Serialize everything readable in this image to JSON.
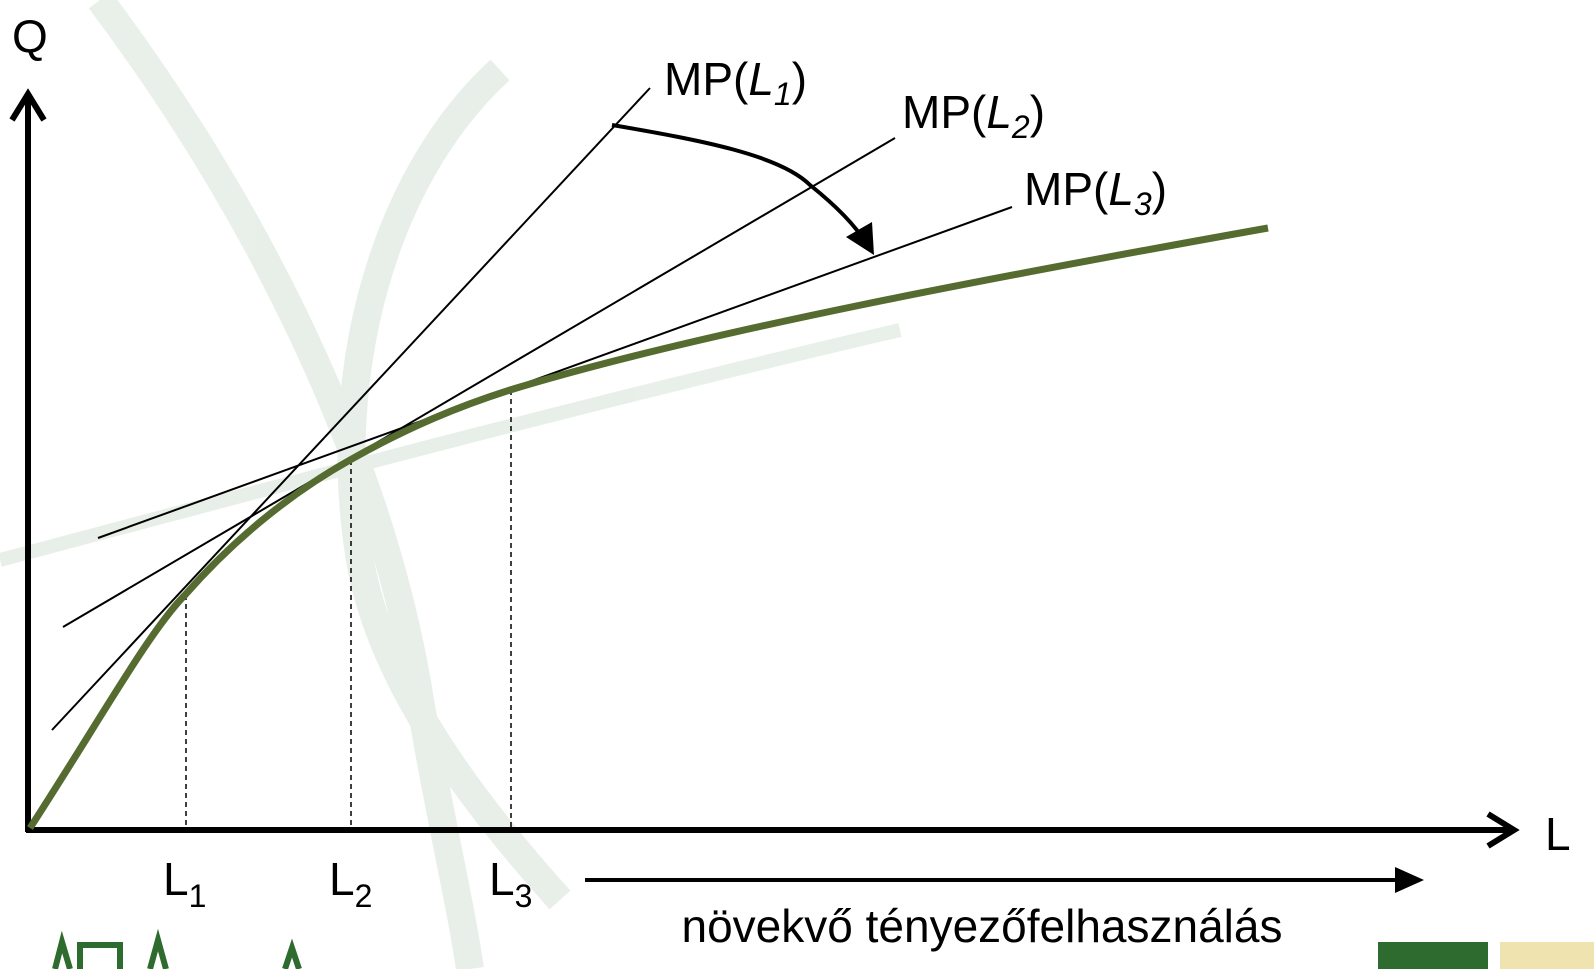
{
  "axes": {
    "y_label": "Q",
    "x_label": "L"
  },
  "x_markers": [
    {
      "main": "L",
      "sub": "1"
    },
    {
      "main": "L",
      "sub": "2"
    },
    {
      "main": "L",
      "sub": "3"
    }
  ],
  "tangents": [
    {
      "prefix": "MP(",
      "var": "L",
      "sub": "1",
      "suffix": ")"
    },
    {
      "prefix": "MP(",
      "var": "L",
      "sub": "2",
      "suffix": ")"
    },
    {
      "prefix": "MP(",
      "var": "L",
      "sub": "3",
      "suffix": ")"
    }
  ],
  "caption": "növekvő tényezőfelhasználás"
}
